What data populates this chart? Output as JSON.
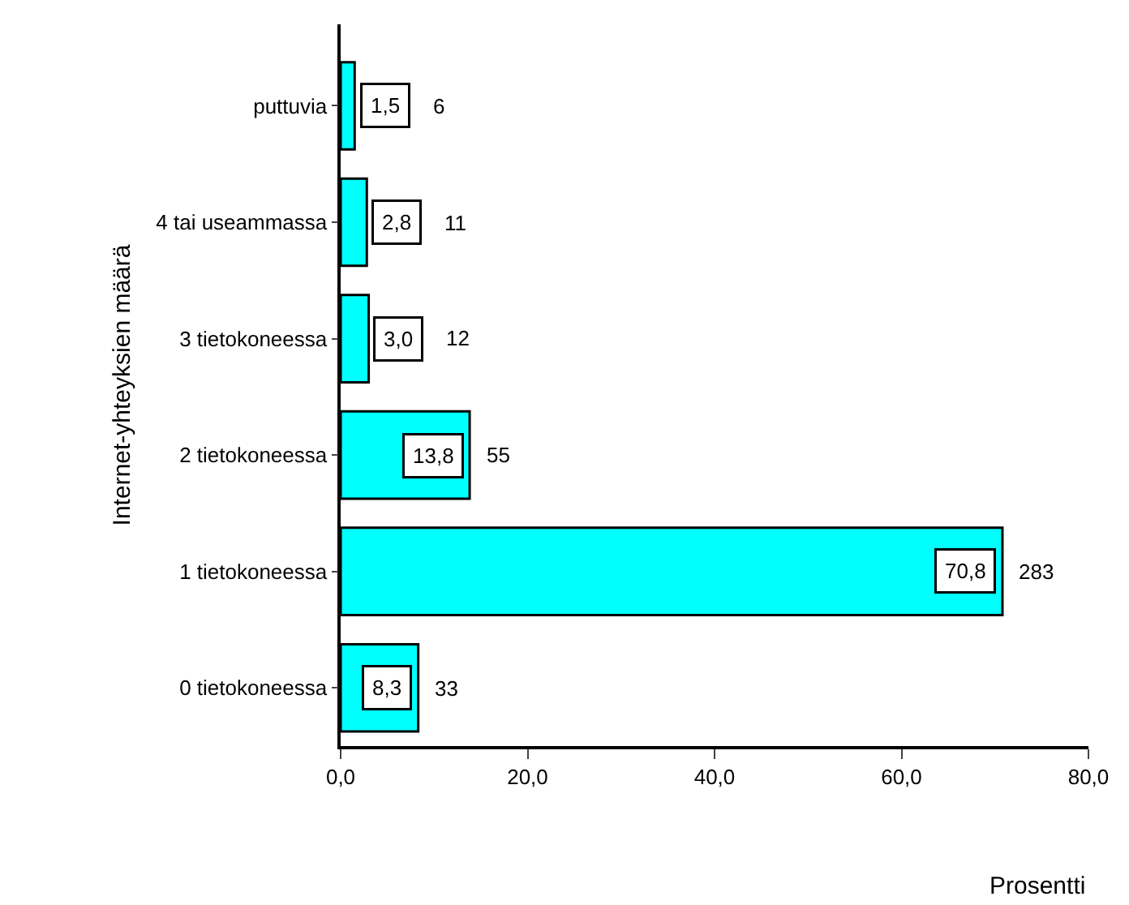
{
  "chart_data": {
    "type": "bar",
    "orientation": "horizontal",
    "categories": [
      "puttuvia",
      "4 tai useammassa",
      "3 tietokoneessa",
      "2 tietokoneessa",
      "1 tietokoneessa",
      "0 tietokoneessa"
    ],
    "values": [
      1.5,
      2.8,
      3.0,
      13.8,
      70.8,
      8.3
    ],
    "value_labels": [
      "1,5",
      "2,8",
      "3,0",
      "13,8",
      "70,8",
      "8,3"
    ],
    "color": "#00ffff",
    "xlim": [
      0,
      80
    ],
    "xticks": [
      {
        "value": 0,
        "label": "0,0"
      },
      {
        "value": 20,
        "label": "20,0"
      },
      {
        "value": 40,
        "label": "40,0"
      },
      {
        "value": 60,
        "label": "60,0"
      },
      {
        "value": 80,
        "label": "80,0"
      }
    ],
    "xlabel": "Prosentti",
    "ylabel": "Internet-yhteyksien määrä",
    "annotations": [
      "6",
      "11",
      "12",
      "55",
      "283",
      "33"
    ],
    "legend": false
  }
}
